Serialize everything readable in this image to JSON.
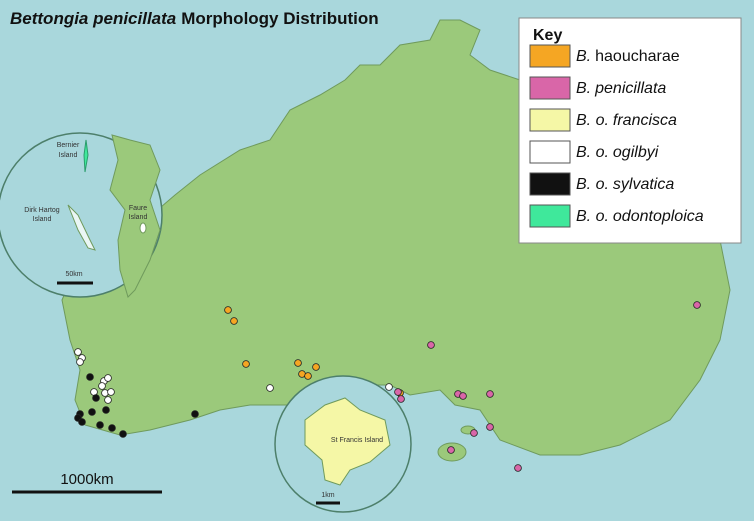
{
  "title": {
    "italic": "Bettongia penicillata",
    "rest": "Morphology Distribution"
  },
  "key": {
    "title": "Key",
    "items": [
      {
        "prefix": "B.",
        "rest": "haoucharae",
        "color": "#f5a623"
      },
      {
        "prefix": "B.",
        "rest": "penicillata",
        "color": "#d966a8"
      },
      {
        "prefix": "B. o.",
        "rest": "francisca",
        "color": "#f5f7a6"
      },
      {
        "prefix": "B. o.",
        "rest": "ogilbyi",
        "color": "#ffffff"
      },
      {
        "prefix": "B. o.",
        "rest": "sylvatica",
        "color": "#111111"
      },
      {
        "prefix": "B. o.",
        "rest": "odontoploica",
        "color": "#3fe89b"
      }
    ]
  },
  "inset_west": {
    "labels": [
      [
        "Bernier",
        "Island"
      ],
      [
        "Dirk Hartog",
        "Island"
      ],
      [
        "Faure",
        "Island"
      ]
    ],
    "scale": "50km"
  },
  "inset_south": {
    "label": "St Francis Island",
    "scale": "1km"
  },
  "scale": "1000km"
}
